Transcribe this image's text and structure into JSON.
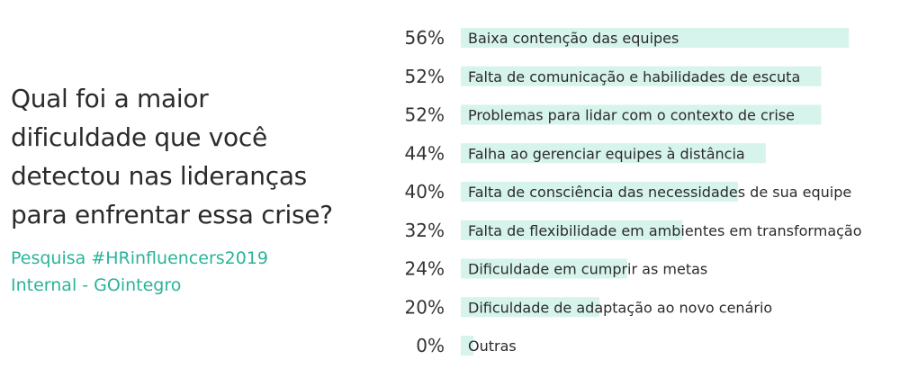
{
  "question_lines": [
    "Qual foi a maior",
    "dificuldade que você",
    "detectou nas lideranças",
    "para enfrentar essa crise?"
  ],
  "source_lines": [
    "Pesquisa #HRinfluencers2019",
    "Internal - GOintegro"
  ],
  "colors": {
    "bar": "#d6f3ec",
    "question_text": "#2b2b2b",
    "source_text": "#2bb39a",
    "percent_text": "#333333",
    "label_text": "#2b2b2b"
  },
  "chart_data": {
    "type": "bar",
    "orientation": "horizontal",
    "categories": [
      "Baixa contenção das equipes",
      "Falta de comunicação e habilidades de escuta",
      "Problemas para lidar com o contexto de crise",
      "Falha ao gerenciar equipes à distância",
      "Falta de consciência das necessidades de sua equipe",
      "Falta de flexibilidade em ambientes em transformação",
      "Dificuldade em cumprir as metas",
      "Dificuldade de adaptação ao novo cenário",
      "Outras"
    ],
    "values": [
      56,
      52,
      52,
      44,
      40,
      32,
      24,
      20,
      0
    ],
    "value_labels": [
      "56%",
      "52%",
      "52%",
      "44%",
      "40%",
      "32%",
      "24%",
      "20%",
      "0%"
    ],
    "xlim": [
      0,
      100
    ],
    "grid": false,
    "legend": "none"
  }
}
